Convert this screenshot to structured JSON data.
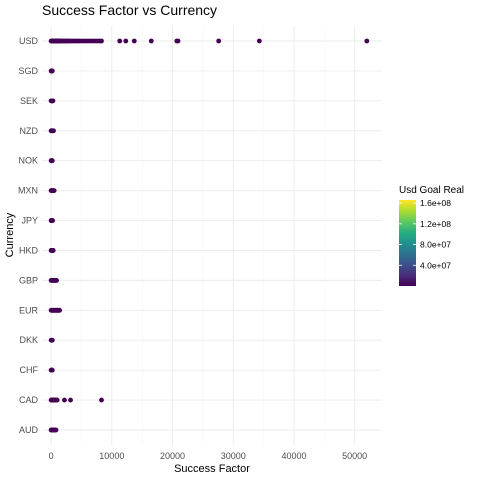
{
  "chart_data": {
    "type": "scatter",
    "title": "Success Factor vs Currency",
    "xlabel": "Success Factor",
    "ylabel": "Currency",
    "xlim": [
      -1500,
      54500
    ],
    "xticks": [
      0,
      10000,
      20000,
      30000,
      40000,
      50000
    ],
    "xtick_labels": [
      "0",
      "10000",
      "20000",
      "30000",
      "40000",
      "50000"
    ],
    "categories": [
      "AUD",
      "CAD",
      "CHF",
      "DKK",
      "EUR",
      "GBP",
      "HKD",
      "JPY",
      "MXN",
      "NOK",
      "NZD",
      "SEK",
      "SGD",
      "USD"
    ],
    "grid": true,
    "color_scale": {
      "name": "viridis",
      "title": "Usd Goal Real",
      "range": [
        0,
        166000000
      ],
      "ticks": [
        40000000,
        80000000,
        120000000,
        160000000
      ],
      "tick_labels": [
        "4.0e+07",
        "8.0e+07",
        "1.2e+08",
        "1.6e+08"
      ],
      "legend_placement": "right"
    },
    "point_color": "#440154",
    "points": {
      "USD": [
        0,
        100,
        200,
        300,
        400,
        500,
        600,
        700,
        800,
        900,
        1000,
        1100,
        1200,
        1350,
        1500,
        1650,
        1800,
        2000,
        2200,
        2400,
        2600,
        2800,
        3000,
        3300,
        3600,
        3900,
        4200,
        4500,
        4800,
        5200,
        5600,
        6000,
        6400,
        6800,
        7200,
        7600,
        8000,
        8300,
        11300,
        12300,
        13700,
        16500,
        20700,
        20900,
        27600,
        34300,
        52000
      ],
      "SGD": [
        0,
        50,
        100,
        150,
        200
      ],
      "SEK": [
        0,
        60,
        120,
        180,
        250,
        300
      ],
      "NZD": [
        0,
        80,
        160,
        240,
        320,
        400
      ],
      "NOK": [
        0,
        50,
        100,
        150,
        200
      ],
      "MXN": [
        0,
        80,
        160,
        240,
        320,
        400,
        500
      ],
      "JPY": [
        0,
        50,
        100,
        150,
        200,
        250
      ],
      "HKD": [
        0,
        60,
        120,
        180,
        250,
        300,
        350
      ],
      "GBP": [
        0,
        100,
        200,
        300,
        400,
        500,
        600,
        700,
        800,
        900
      ],
      "EUR": [
        0,
        100,
        200,
        300,
        400,
        500,
        600,
        700,
        800,
        900,
        1000,
        1100,
        1200,
        1300,
        1400
      ],
      "DKK": [
        0,
        50,
        100,
        150,
        200
      ],
      "CHF": [
        0,
        50,
        100,
        150,
        200
      ],
      "CAD": [
        0,
        100,
        200,
        300,
        400,
        500,
        600,
        700,
        800,
        900,
        1000,
        2200,
        3200,
        8300
      ],
      "AUD": [
        0,
        100,
        200,
        300,
        400,
        500,
        600,
        700,
        800
      ]
    }
  }
}
